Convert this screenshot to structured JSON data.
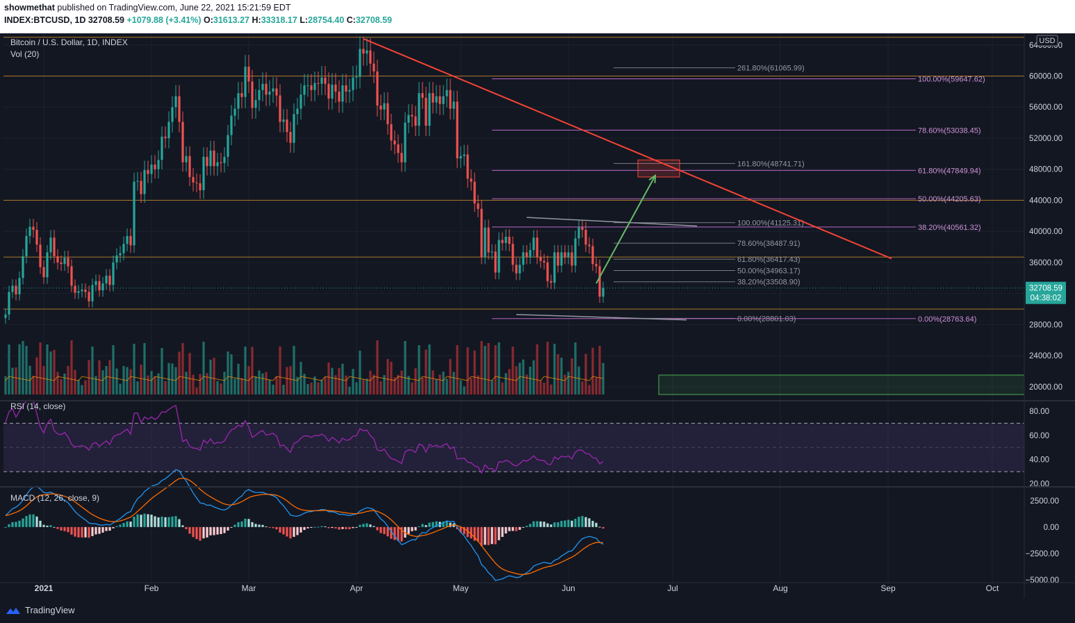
{
  "header": {
    "author": "showmethat",
    "published_text": "published on TradingView.com, June 22, 2021 15:21:59 EDT",
    "symbol_line": "INDEX:BTCUSD, 1D 32708.59",
    "change": "+1079.88 (+3.41%)",
    "o_label": "O:",
    "o_value": "31613.27",
    "h_label": "H:",
    "h_value": "33318.17",
    "l_label": "L:",
    "l_value": "28754.40",
    "c_label": "C:",
    "c_value": "32708.59"
  },
  "chart_data": [
    {
      "type": "candlestick",
      "title": "Bitcoin / U.S. Dollar, 1D, INDEX",
      "currency": "USD",
      "x_ticks": [
        "2021",
        "Feb",
        "Mar",
        "Apr",
        "May",
        "Jun",
        "Jul",
        "Aug",
        "Sep",
        "Oct"
      ],
      "y_ticks": [
        20000,
        24000,
        28000,
        32000,
        36000,
        40000,
        44000,
        48000,
        52000,
        56000,
        60000,
        64000
      ],
      "ylim": [
        19000,
        65500
      ],
      "last_price": "32708.59",
      "countdown": "04:38:02",
      "closes": [
        29300,
        32200,
        33000,
        31900,
        34000,
        36800,
        39400,
        40600,
        40200,
        38300,
        35400,
        34100,
        37300,
        39200,
        36800,
        36000,
        35800,
        36600,
        35500,
        33000,
        32100,
        32300,
        32500,
        32200,
        31000,
        33100,
        33600,
        32400,
        33300,
        34300,
        33100,
        36000,
        36900,
        37200,
        38400,
        39400,
        38200,
        46400,
        46500,
        44800,
        47900,
        47400,
        48600,
        48000,
        49200,
        52200,
        52000,
        54100,
        56000,
        57400,
        54100,
        48900,
        49700,
        47000,
        46300,
        46200,
        45300,
        49600,
        48400,
        50400,
        48400,
        48900,
        48800,
        49600,
        52400,
        54900,
        55800,
        57800,
        57300,
        61200,
        59300,
        55900,
        56900,
        58200,
        59000,
        57600,
        58000,
        58400,
        57500,
        54100,
        54400,
        52800,
        51400,
        55100,
        55800,
        57600,
        58800,
        58800,
        58200,
        59100,
        59000,
        59800,
        59000,
        57100,
        58900,
        58000,
        56700,
        58800,
        58000,
        58200,
        59800,
        59900,
        63500,
        62900,
        63300,
        61600,
        60600,
        56200,
        55700,
        56500,
        53800,
        51700,
        51200,
        50100,
        48900,
        54000,
        55000,
        54800,
        53600,
        57800,
        57200,
        53600,
        57800,
        56600,
        57400,
        56400,
        57400,
        58200,
        55800,
        56700,
        49400,
        49700,
        49900,
        46800,
        46400,
        43600,
        42900,
        36700,
        40500,
        37300,
        37400,
        34700,
        38900,
        38500,
        39300,
        38400,
        35700,
        34600,
        35700,
        37300,
        36700,
        37600,
        39200,
        36700,
        36200,
        36000,
        33600,
        33400,
        37300,
        35600,
        37300,
        36700,
        37300,
        35600,
        39100,
        40500,
        40200,
        38300,
        38100,
        35800,
        35500,
        31600,
        32700
      ],
      "volume_series": {
        "name": "Vol (20)",
        "note": "volume histogram with 20-period MA"
      },
      "horizontal_levels": [
        65000,
        60000,
        44000,
        36700,
        30000,
        28801
      ],
      "fib_left": [
        {
          "label": "261.80%(61065.99)",
          "value": 61066
        },
        {
          "label": "161.80%(48741.71)",
          "value": 48742
        },
        {
          "label": "100.00%(41125.31)",
          "value": 41125
        },
        {
          "label": "78.60%(38487.91)",
          "value": 38488
        },
        {
          "label": "61.80%(36417.43)",
          "value": 36417
        },
        {
          "label": "50.00%(34963.17)",
          "value": 34963
        },
        {
          "label": "38.20%(33508.90)",
          "value": 33509
        },
        {
          "label": "0.00%(28801.03)",
          "value": 28801
        }
      ],
      "fib_right": [
        {
          "label": "100.00%(59647.62)",
          "value": 59648
        },
        {
          "label": "78.60%(53038.45)",
          "value": 53038
        },
        {
          "label": "61.80%(47849.94)",
          "value": 47850
        },
        {
          "label": "50.00%(44205.63)",
          "value": 44206
        },
        {
          "label": "38.20%(40561.32)",
          "value": 40561
        },
        {
          "label": "0.00%(28763.64)",
          "value": 28764
        }
      ],
      "trendline": {
        "from": {
          "day": 103,
          "price": 64800
        },
        "to": {
          "day": 255,
          "price": 36500
        }
      },
      "target_box": {
        "day_from": 182,
        "day_to": 194,
        "price_low": 47000,
        "price_high": 49200
      },
      "projection_arrow": {
        "from": {
          "day": 170,
          "price": 33300
        },
        "to": {
          "day": 187,
          "price": 47200
        }
      }
    },
    {
      "type": "line",
      "title": "RSI (14, close)",
      "y_ticks": [
        20,
        40,
        60,
        80
      ],
      "ylim": [
        18,
        88
      ],
      "bands": [
        30,
        50,
        70
      ],
      "values": [
        70.7,
        79.6,
        82,
        75.1,
        79.9,
        84.5,
        88.5,
        88.9,
        88.6,
        78,
        66.9,
        61.9,
        69.9,
        73.3,
        63.8,
        61.2,
        60.5,
        62.3,
        58.8,
        52.5,
        50.4,
        50.9,
        51.4,
        50.6,
        47.7,
        52.9,
        54.1,
        51,
        53.2,
        55.5,
        52.4,
        58.7,
        60.4,
        61,
        63.3,
        65.1,
        60.9,
        78.2,
        78.4,
        70.4,
        75.2,
        73.3,
        75.2,
        73,
        75.2,
        79.5,
        79,
        81.4,
        83.3,
        84.6,
        70.1,
        54.8,
        56.6,
        50.9,
        49.4,
        49.3,
        47.6,
        56.1,
        53.5,
        57.1,
        53.1,
        54.1,
        53.8,
        55.4,
        60.6,
        64.5,
        65.8,
        68.4,
        67.2,
        72.2,
        66.8,
        58.3,
        60.1,
        62.5,
        63.9,
        60.2,
        60.9,
        61.7,
        59.3,
        51.3,
        52,
        48.7,
        46,
        53.3,
        54.6,
        57.6,
        59.6,
        59.5,
        58.3,
        59.9,
        59.6,
        61,
        59.1,
        55,
        58.4,
        56.4,
        53.7,
        57.6,
        55.9,
        56.3,
        59.4,
        59.6,
        65.5,
        63.8,
        64.3,
        59.7,
        57.2,
        47.9,
        47,
        48.6,
        44,
        40.8,
        40,
        38.4,
        36.8,
        46.4,
        48,
        47.7,
        45.8,
        52.8,
        51.7,
        46.2,
        52.6,
        50.6,
        51.9,
        50.2,
        51.8,
        53.2,
        48.9,
        50.5,
        40.4,
        40.8,
        41.1,
        37.8,
        37.4,
        34.6,
        33.9,
        28.8,
        35.7,
        32.5,
        32.6,
        30.2,
        38.2,
        37.9,
        39.3,
        38.4,
        35.7,
        34.7,
        36.6,
        39.4,
        38.7,
        40.4,
        43.2,
        40,
        39.4,
        39.2,
        36.2,
        36,
        42.2,
        40.2,
        42.8,
        42.1,
        43,
        40.6,
        46.1,
        48,
        47.6,
        44.9,
        44.6,
        41.5,
        41.1,
        36.4,
        38.4
      ]
    },
    {
      "type": "line+histogram",
      "title": "MACD (12, 26, close, 9)",
      "y_ticks": [
        -5000,
        -2500,
        0,
        2500
      ],
      "ylim": [
        -5200,
        3800
      ],
      "macd": [
        1086,
        1416,
        1730,
        1880,
        2143,
        2552,
        3047,
        3502,
        3801,
        3846,
        3594,
        3264,
        3222,
        3304,
        3138,
        2907,
        2676,
        2529,
        2298,
        1888,
        1476,
        1154,
        901,
        668,
        385,
        322,
        310,
        200,
        181,
        244,
        190,
        383,
        611,
        807,
        1070,
        1346,
        1459,
        2161,
        2690,
        2943,
        3360,
        3612,
        3863,
        3964,
        4095,
        4403,
        4579,
        4832,
        5134,
        5429,
        5326,
        4782,
        4366,
        3785,
        3229,
        2752,
        2281,
        2228,
        2064,
        2073,
        1900,
        1782,
        1658,
        1607,
        1770,
        2077,
        2372,
        2725,
        2933,
        3384,
        3548,
        3367,
        3276,
        3264,
        3285,
        3156,
        3049,
        2961,
        2790,
        2350,
        2004,
        1583,
        1128,
        1051,
        1026,
        1138,
        1313,
        1433,
        1464,
        1545,
        1579,
        1653,
        1635,
        1448,
        1454,
        1373,
        1197,
        1209,
        1144,
        1094,
        1170,
        1225,
        1522,
        1687,
        1827,
        1780,
        1651,
        1181,
        770,
        502,
        71,
        -430,
        -852,
        -1263,
        -1662,
        -1544,
        -1353,
        -1200,
        -1213,
        -795,
        -507,
        -567,
        -230,
        -55,
        149,
        229,
        391,
        577,
        524,
        548,
        -49,
        -491,
        -823,
        -1326,
        -1733,
        -2268,
        -2722,
        -3551,
        -3866,
        -4320,
        -4625,
        -5051,
        -4980,
        -4905,
        -4728,
        -4608,
        -4679,
        -4791,
        -4736,
        -4507,
        -4329,
        -4073,
        -3691,
        -3550,
        -3438,
        -3331,
        -3406,
        -3452,
        -3142,
        -3016,
        -2741,
        -2545,
        -2314,
        -2244,
        -1868,
        -1438,
        -1101,
        -975,
        -882,
        -973,
        -1061,
        -1432,
        -1630
      ],
      "signal": [
        1086,
        1152,
        1268,
        1390,
        1541,
        1743,
        2004,
        2304,
        2603,
        2852,
        3000,
        3053,
        3087,
        3130,
        3132,
        3087,
        3005,
        2910,
        2787,
        2607,
        2381,
        2136,
        1889,
        1645,
        1393,
        1179,
        1005,
        844,
        711,
        618,
        532,
        502,
        524,
        581,
        679,
        812,
        942,
        1185,
        1486,
        1777,
        2094,
        2397,
        2690,
        2945,
        3175,
        3420,
        3652,
        3888,
        4137,
        4395,
        4581,
        4621,
        4570,
        4413,
        4176,
        3891,
        3569,
        3301,
        3053,
        2857,
        2666,
        2489,
        2323,
        2180,
        2098,
        2094,
        2150,
        2265,
        2399,
        2596,
        2786,
        2902,
        2977,
        3034,
        3084,
        3099,
        3089,
        3063,
        3008,
        2877,
        2702,
        2478,
        2208,
        1977,
        1787,
        1657,
        1588,
        1557,
        1538,
        1540,
        1548,
        1569,
        1582,
        1555,
        1535,
        1502,
        1441,
        1395,
        1345,
        1295,
        1270,
        1261,
        1313,
        1388,
        1476,
        1537,
        1560,
        1484,
        1341,
        1173,
        953,
        677,
        371,
        44,
        -297,
        -547,
        -708,
        -806,
        -888,
        -869,
        -796,
        -750,
        -646,
        -528,
        -392,
        -268,
        -136,
        6,
        110,
        197,
        148,
        20,
        -149,
        -384,
        -654,
        -977,
        -1326,
        -1771,
        -2190,
        -2616,
        -3018,
        -3425,
        -3736,
        -3970,
        -4121,
        -4219,
        -4311,
        -4407,
        -4473,
        -4480,
        -4450,
        -4374,
        -4238,
        -4101,
        -3968,
        -3841,
        -3754,
        -3694,
        -3584,
        -3471,
        -3325,
        -3169,
        -2998,
        -2847,
        -2651,
        -2408,
        -2147,
        -1912,
        -1706,
        -1559,
        -1460,
        -1454,
        -1489
      ]
    }
  ]
}
